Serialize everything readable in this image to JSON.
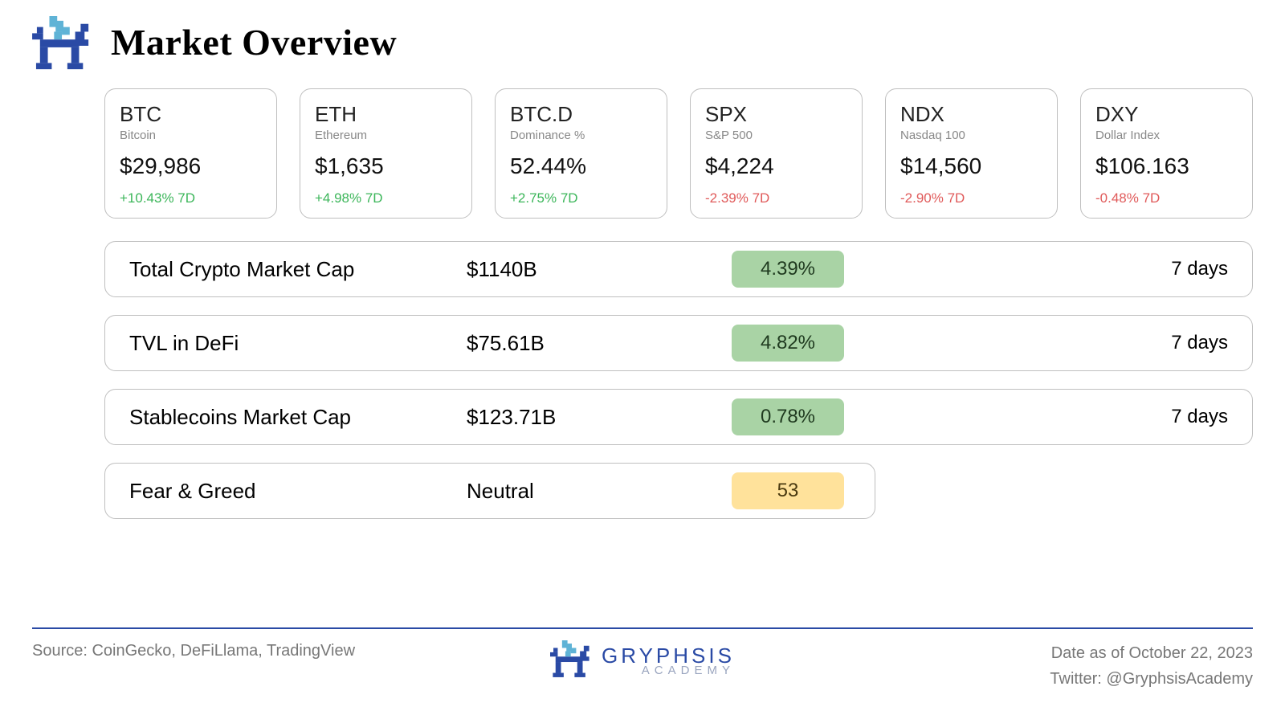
{
  "title": "Market Overview",
  "colors": {
    "positive": "#3cb65a",
    "negative": "#e05a5a",
    "card_border": "#bfbfbf",
    "greenbox_bg": "#a9d3a5",
    "yellowbox_bg": "#ffe29b",
    "footer_line": "#2a4aa5",
    "brand_blue": "#2a4aa5",
    "brand_cyan": "#5fb3d6",
    "muted_text": "#888888"
  },
  "cards": [
    {
      "symbol": "BTC",
      "name": "Bitcoin",
      "value": "$29,986",
      "change": "+10.43% 7D",
      "dir": "pos"
    },
    {
      "symbol": "ETH",
      "name": "Ethereum",
      "value": "$1,635",
      "change": "+4.98% 7D",
      "dir": "pos"
    },
    {
      "symbol": "BTC.D",
      "name": "Dominance %",
      "value": "52.44%",
      "change": "+2.75% 7D",
      "dir": "pos"
    },
    {
      "symbol": "SPX",
      "name": "S&P 500",
      "value": "$4,224",
      "change": "-2.39% 7D",
      "dir": "neg"
    },
    {
      "symbol": "NDX",
      "name": "Nasdaq 100",
      "value": "$14,560",
      "change": "-2.90% 7D",
      "dir": "neg"
    },
    {
      "symbol": "DXY",
      "name": "Dollar Index",
      "value": "$106.163",
      "change": "-0.48% 7D",
      "dir": "neg"
    }
  ],
  "rows": [
    {
      "label": "Total Crypto Market Cap",
      "value": "$1140B",
      "change": "4.39%",
      "box": "greenbox",
      "period": "7 days",
      "narrow": false
    },
    {
      "label": "TVL in DeFi",
      "value": "$75.61B",
      "change": "4.82%",
      "box": "greenbox",
      "period": "7 days",
      "narrow": false
    },
    {
      "label": "Stablecoins Market Cap",
      "value": "$123.71B",
      "change": "0.78%",
      "box": "greenbox",
      "period": "7 days",
      "narrow": false
    },
    {
      "label": "Fear & Greed",
      "value": "Neutral",
      "change": "53",
      "box": "yellowbox",
      "period": "",
      "narrow": true
    }
  ],
  "footer": {
    "source": "Source: CoinGecko, DeFiLlama, TradingView",
    "brand_main": "GRYPHSIS",
    "brand_sub": "ACADEMY",
    "date": "Date as of October 22, 2023",
    "twitter": "Twitter: @GryphsisAcademy"
  }
}
